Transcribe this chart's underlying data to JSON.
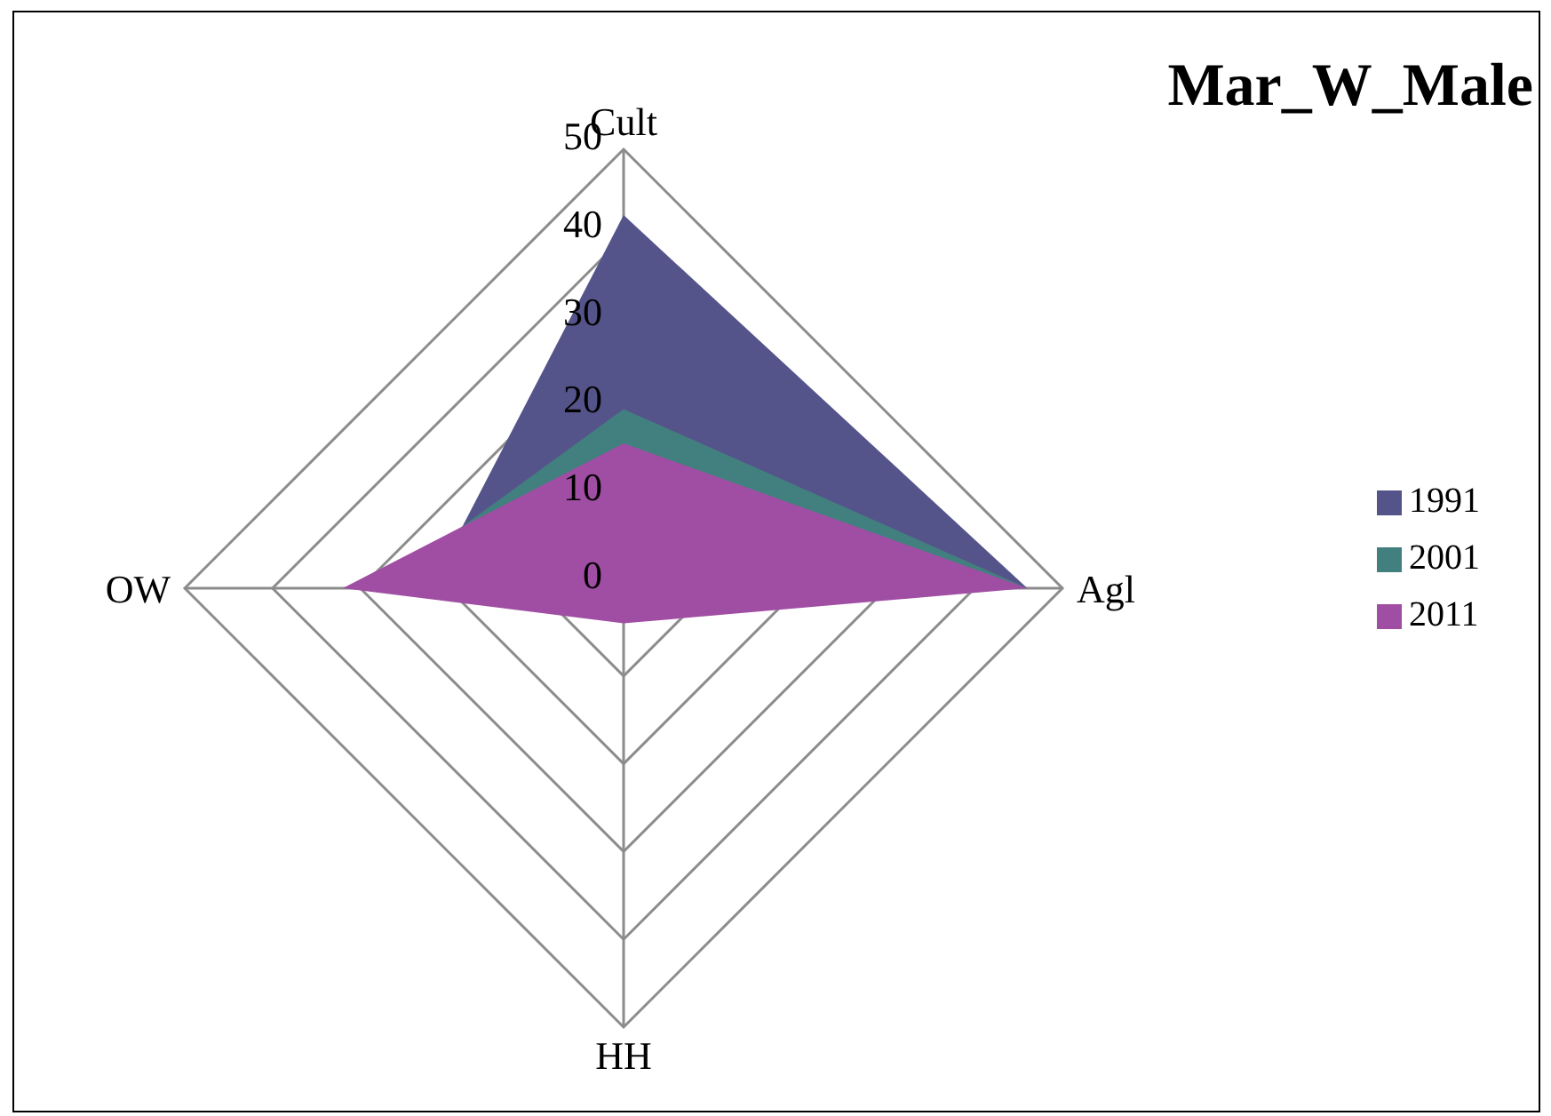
{
  "chart_data": {
    "type": "radar",
    "title": "Mar_W_Male",
    "categories": [
      "Cult",
      "Agl",
      "HH",
      "OW"
    ],
    "series": [
      {
        "name": "1991",
        "color": "#55548a",
        "values": [
          42.5,
          46,
          null,
          22
        ]
      },
      {
        "name": "2001",
        "color": "#42807f",
        "values": [
          20.4,
          46,
          null,
          28
        ]
      },
      {
        "name": "2011",
        "color": "#a04ea3",
        "values": [
          16.5,
          46,
          4,
          32
        ]
      }
    ],
    "ylim": [
      0,
      50
    ],
    "yticks": [
      0,
      10,
      20,
      30,
      40,
      50
    ],
    "grid": true,
    "legend": "right"
  }
}
